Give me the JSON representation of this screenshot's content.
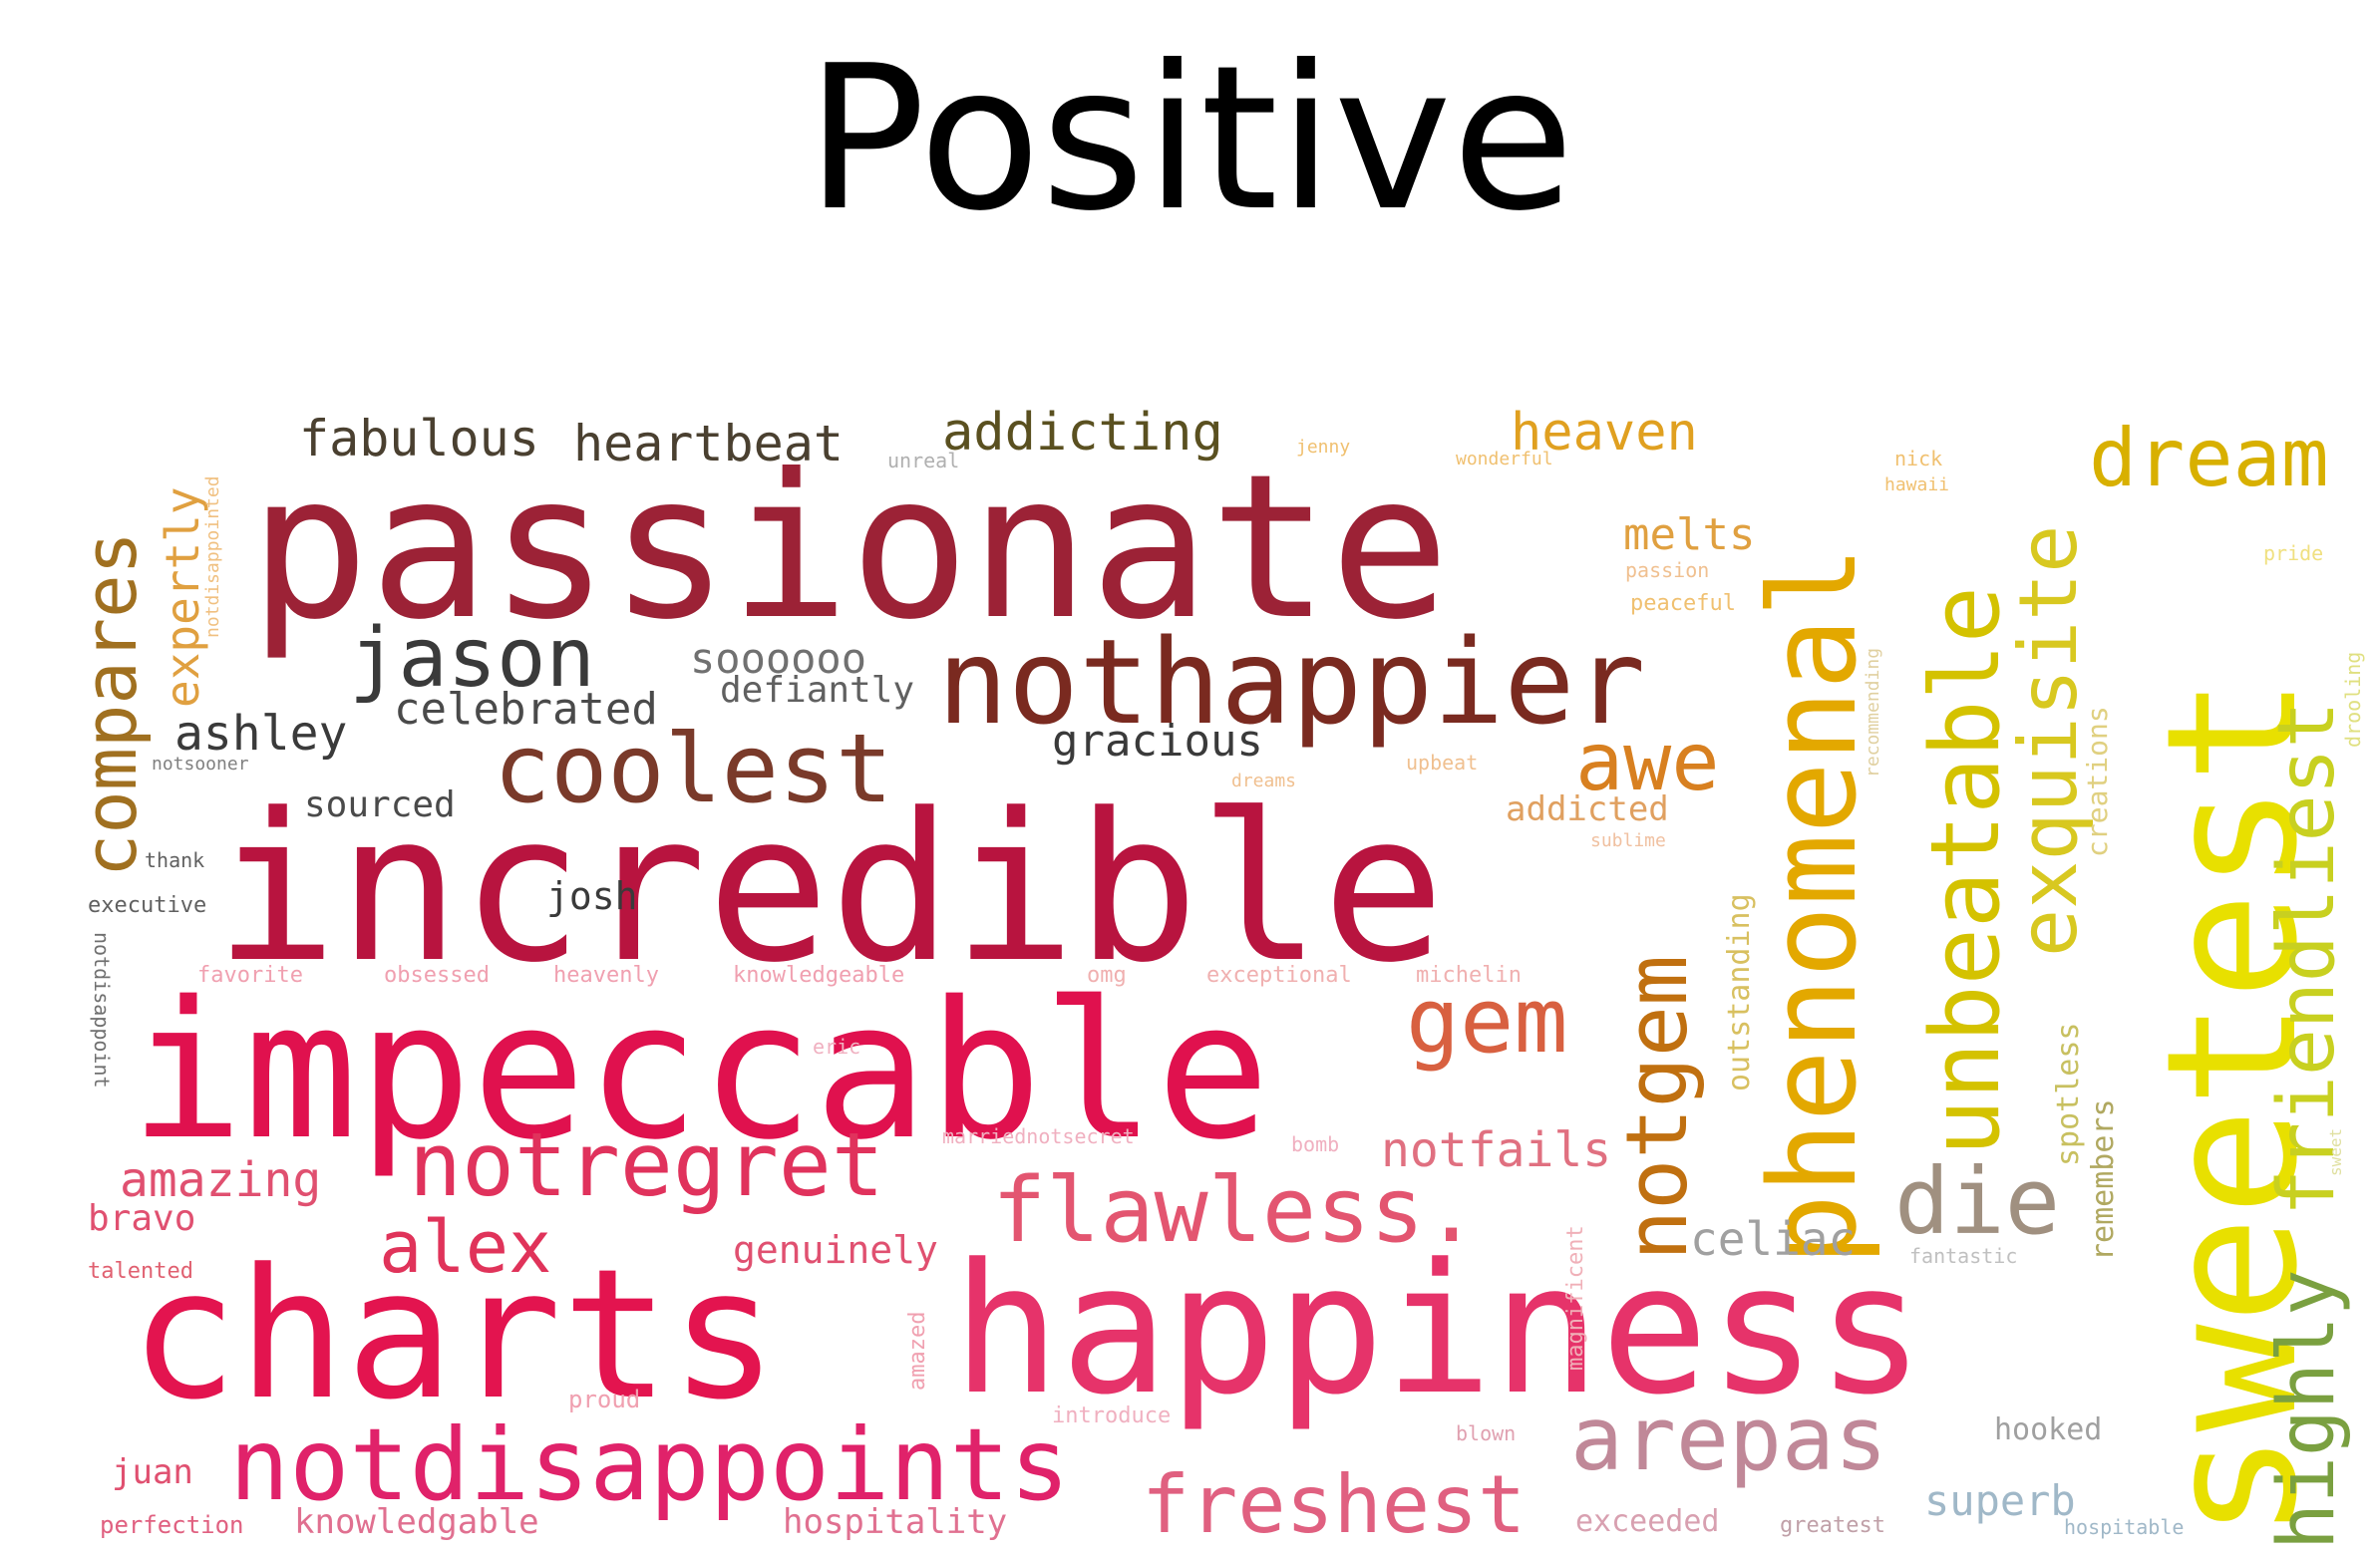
{
  "title": "Positive",
  "words": [
    {
      "text": "passionate",
      "color": "#9c2236"
    },
    {
      "text": "incredible",
      "color": "#b8143f"
    },
    {
      "text": "impeccable",
      "color": "#e0114e"
    },
    {
      "text": "charts",
      "color": "#e3144f"
    },
    {
      "text": "happiness",
      "color": "#e6336a"
    },
    {
      "text": "sweetest",
      "color": "#e8e000"
    },
    {
      "text": "nothappier",
      "color": "#7a2a20"
    },
    {
      "text": "phenomenal",
      "color": "#e3a800"
    },
    {
      "text": "unbeatable",
      "color": "#d4c200"
    },
    {
      "text": "exquisite",
      "color": "#d8c820"
    },
    {
      "text": "friendliest",
      "color": "#c8d020"
    },
    {
      "text": "highly",
      "color": "#7aa040"
    },
    {
      "text": "notgem",
      "color": "#c07010"
    },
    {
      "text": "dream",
      "color": "#d8b000"
    },
    {
      "text": "notdisappoints",
      "color": "#e0226a"
    },
    {
      "text": "notregret",
      "color": "#e0325c"
    },
    {
      "text": "flawless.",
      "color": "#e35570"
    },
    {
      "text": "coolest",
      "color": "#7a3a2a"
    },
    {
      "text": "jason",
      "color": "#3a3a3a"
    },
    {
      "text": "compares",
      "color": "#a07020"
    },
    {
      "text": "expertly",
      "color": "#e0a040"
    },
    {
      "text": "fabulous",
      "color": "#4a4030"
    },
    {
      "text": "heartbeat",
      "color": "#4a4030"
    },
    {
      "text": "addicting",
      "color": "#5a5020"
    },
    {
      "text": "heaven",
      "color": "#e0a020"
    },
    {
      "text": "melts",
      "color": "#e0a040"
    },
    {
      "text": "awe",
      "color": "#d88020"
    },
    {
      "text": "gem",
      "color": "#d86040"
    },
    {
      "text": "die",
      "color": "#a09080"
    },
    {
      "text": "arepas",
      "color": "#c08898"
    },
    {
      "text": "freshest",
      "color": "#e06080"
    },
    {
      "text": "alex",
      "color": "#e0335a"
    },
    {
      "text": "amazing",
      "color": "#e05070"
    },
    {
      "text": "bravo",
      "color": "#e05070"
    },
    {
      "text": "notfails",
      "color": "#e07080"
    },
    {
      "text": "celiac",
      "color": "#a0a0a0"
    },
    {
      "text": "genuinely",
      "color": "#e05070"
    },
    {
      "text": "soooooo",
      "color": "#707070"
    },
    {
      "text": "defiantly",
      "color": "#606060"
    },
    {
      "text": "celebrated",
      "color": "#4a4a4a"
    },
    {
      "text": "ashley",
      "color": "#3a3a3a"
    },
    {
      "text": "gracious",
      "color": "#3a3a3a"
    },
    {
      "text": "sourced",
      "color": "#4a4a4a"
    },
    {
      "text": "josh",
      "color": "#3a3a3a"
    },
    {
      "text": "addicted",
      "color": "#e0a060"
    },
    {
      "text": "outstanding",
      "color": "#d8c060"
    },
    {
      "text": "spotless",
      "color": "#c8c060"
    },
    {
      "text": "remembers",
      "color": "#b0a860"
    },
    {
      "text": "creations",
      "color": "#e0d080"
    },
    {
      "text": "superb",
      "color": "#a0b8c8"
    },
    {
      "text": "hooked",
      "color": "#a0a0a0"
    },
    {
      "text": "exceeded",
      "color": "#d8a0b0"
    },
    {
      "text": "greatest",
      "color": "#c0a0a8"
    },
    {
      "text": "hospitable",
      "color": "#a0b8c8"
    },
    {
      "text": "juan",
      "color": "#e05070"
    },
    {
      "text": "perfection",
      "color": "#e06080"
    },
    {
      "text": "knowledgable",
      "color": "#e07090"
    },
    {
      "text": "hospitality",
      "color": "#e07090"
    },
    {
      "text": "talented",
      "color": "#e06070"
    },
    {
      "text": "proud",
      "color": "#f0a0b0"
    },
    {
      "text": "introduce",
      "color": "#f0b0c0"
    },
    {
      "text": "blown",
      "color": "#e0a0b0"
    },
    {
      "text": "fantastic",
      "color": "#c0c0c0"
    },
    {
      "text": "magnificent",
      "color": "#f0b0b8"
    },
    {
      "text": "amazed",
      "color": "#f0a0b0"
    },
    {
      "text": "thank",
      "color": "#606060"
    },
    {
      "text": "executive",
      "color": "#606060"
    },
    {
      "text": "notsooner",
      "color": "#808080"
    },
    {
      "text": "notdisappoint",
      "color": "#707070"
    },
    {
      "text": "notdisappointed",
      "color": "#f0c080"
    },
    {
      "text": "favorite",
      "color": "#f0a0b0"
    },
    {
      "text": "obsessed",
      "color": "#f0a0b0"
    },
    {
      "text": "heavenly",
      "color": "#f0a0b0"
    },
    {
      "text": "knowledgeable",
      "color": "#f0a0b0"
    },
    {
      "text": "omg",
      "color": "#f0b0b0"
    },
    {
      "text": "exceptional",
      "color": "#f0b0b0"
    },
    {
      "text": "michelin",
      "color": "#f0b0b0"
    },
    {
      "text": "eric",
      "color": "#f0b0c0"
    },
    {
      "text": "marriednotsecret",
      "color": "#f0b0c0"
    },
    {
      "text": "bomb",
      "color": "#f0b0c0"
    },
    {
      "text": "unreal",
      "color": "#b0b0b0"
    },
    {
      "text": "jenny",
      "color": "#f0c070"
    },
    {
      "text": "wonderful",
      "color": "#f0c070"
    },
    {
      "text": "nick",
      "color": "#f0c070"
    },
    {
      "text": "hawaii",
      "color": "#f0c070"
    },
    {
      "text": "passion",
      "color": "#f0c090"
    },
    {
      "text": "peaceful",
      "color": "#f0c070"
    },
    {
      "text": "upbeat",
      "color": "#f0c090"
    },
    {
      "text": "dreams",
      "color": "#f0c090"
    },
    {
      "text": "sublime",
      "color": "#f0c0a0"
    },
    {
      "text": "recommending",
      "color": "#e0d0a0"
    },
    {
      "text": "pride",
      "color": "#f0e080"
    },
    {
      "text": "drooling",
      "color": "#e0e080"
    },
    {
      "text": "sweet",
      "color": "#e0e0a0"
    }
  ]
}
